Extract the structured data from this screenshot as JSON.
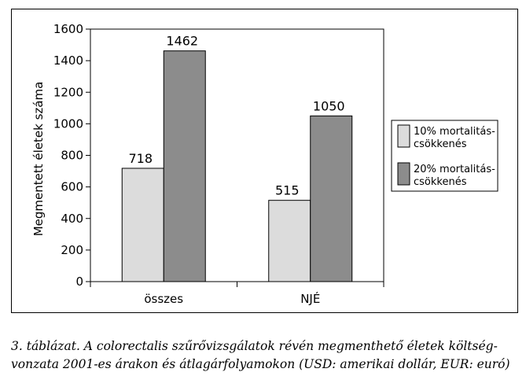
{
  "chart_data": {
    "type": "bar",
    "categories": [
      "összes",
      "NJÉ"
    ],
    "series": [
      {
        "name": "10% mortalitás-csökkenés",
        "name_lines": [
          "10% mortalitás-",
          "csökkenés"
        ],
        "values": [
          718,
          515
        ],
        "color": "#dcdcdc"
      },
      {
        "name": "20% mortalitás-csökkenés",
        "name_lines": [
          "20% mortalitás-",
          "csökkenés"
        ],
        "values": [
          1462,
          1050
        ],
        "color": "#8c8c8c"
      }
    ],
    "ylabel": "Megmentett életek száma",
    "xlabel": "",
    "ylim": [
      0,
      1600
    ],
    "yticks": [
      0,
      200,
      400,
      600,
      800,
      1000,
      1200,
      1400,
      1600
    ],
    "grid": false,
    "legend": "right",
    "plot_background": "#ffffff"
  },
  "caption": {
    "line1": "3. táblázat. A colorectalis szűrővizsgálatok révén megmenthető életek költség-",
    "line2": "vonzata 2001-es árakon és átlagárfolyamokon (USD: amerikai dollár, EUR: euró)"
  }
}
